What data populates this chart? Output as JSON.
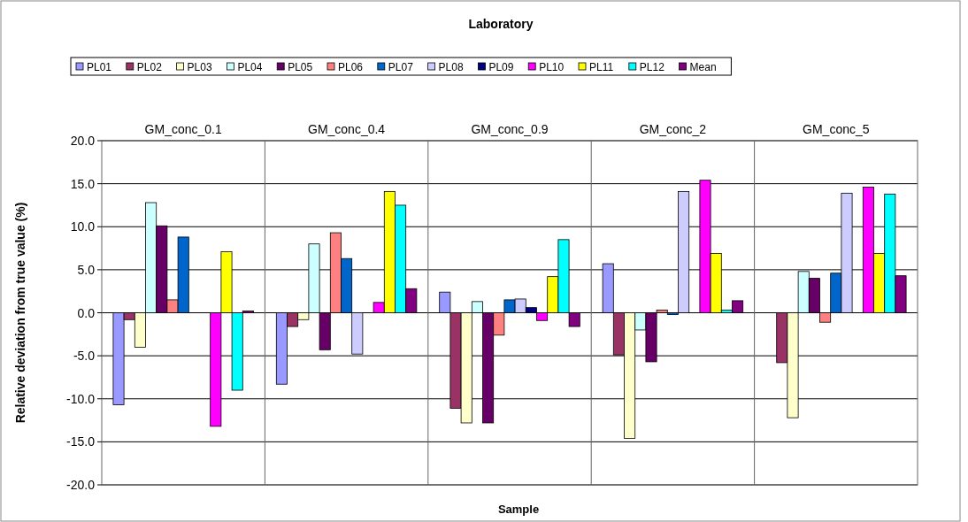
{
  "chart_data": {
    "type": "bar",
    "title": "Laboratory",
    "xlabel": "Sample",
    "ylabel": "Relative deviation from true value (%)",
    "categories": [
      "GM_conc_0.1",
      "GM_conc_0.4",
      "GM_conc_0.9",
      "GM_conc_2",
      "GM_conc_5"
    ],
    "series": [
      {
        "name": "PL01",
        "color": "#9999ff",
        "values": [
          -10.7,
          -8.3,
          2.4,
          5.7,
          null
        ]
      },
      {
        "name": "PL02",
        "color": "#993366",
        "values": [
          -0.8,
          -1.6,
          -11.1,
          -4.9,
          -5.8
        ]
      },
      {
        "name": "PL03",
        "color": "#ffffcc",
        "values": [
          -4.0,
          -0.8,
          -12.8,
          -14.6,
          -12.2
        ]
      },
      {
        "name": "PL04",
        "color": "#ccffff",
        "values": [
          12.8,
          8.0,
          1.3,
          -2.0,
          4.8
        ]
      },
      {
        "name": "PL05",
        "color": "#660066",
        "values": [
          10.1,
          -4.3,
          -12.8,
          -5.7,
          4.0
        ]
      },
      {
        "name": "PL06",
        "color": "#ff8080",
        "values": [
          1.5,
          9.3,
          -2.6,
          0.3,
          -1.1
        ]
      },
      {
        "name": "PL07",
        "color": "#0066cc",
        "values": [
          8.8,
          6.3,
          1.5,
          -0.2,
          4.6
        ]
      },
      {
        "name": "PL08",
        "color": "#ccccff",
        "values": [
          null,
          -4.8,
          1.6,
          14.1,
          13.9
        ]
      },
      {
        "name": "PL09",
        "color": "#000080",
        "values": [
          null,
          null,
          0.6,
          null,
          null
        ]
      },
      {
        "name": "PL10",
        "color": "#ff00ff",
        "values": [
          -13.2,
          1.2,
          -0.9,
          15.4,
          14.6
        ]
      },
      {
        "name": "PL11",
        "color": "#ffff00",
        "values": [
          7.1,
          14.1,
          4.2,
          6.9,
          6.9
        ]
      },
      {
        "name": "PL12",
        "color": "#00ffff",
        "values": [
          -9.0,
          12.5,
          8.5,
          0.3,
          13.8
        ]
      },
      {
        "name": "Mean",
        "color": "#800080",
        "values": [
          0.2,
          2.8,
          -1.6,
          1.4,
          4.3
        ]
      }
    ],
    "ylim": [
      -20,
      20
    ],
    "yticks": [
      {
        "value": -20,
        "label": "-20.0"
      },
      {
        "value": -15,
        "label": "-15.0"
      },
      {
        "value": -10,
        "label": "-10.0"
      },
      {
        "value": -5,
        "label": "-5.0"
      },
      {
        "value": 0,
        "label": "0.0"
      },
      {
        "value": 5,
        "label": "5.0"
      },
      {
        "value": 10,
        "label": "10.0"
      },
      {
        "value": 15,
        "label": "15.0"
      },
      {
        "value": 20,
        "label": "20.0"
      }
    ],
    "grid": "y",
    "legend": "top left"
  }
}
